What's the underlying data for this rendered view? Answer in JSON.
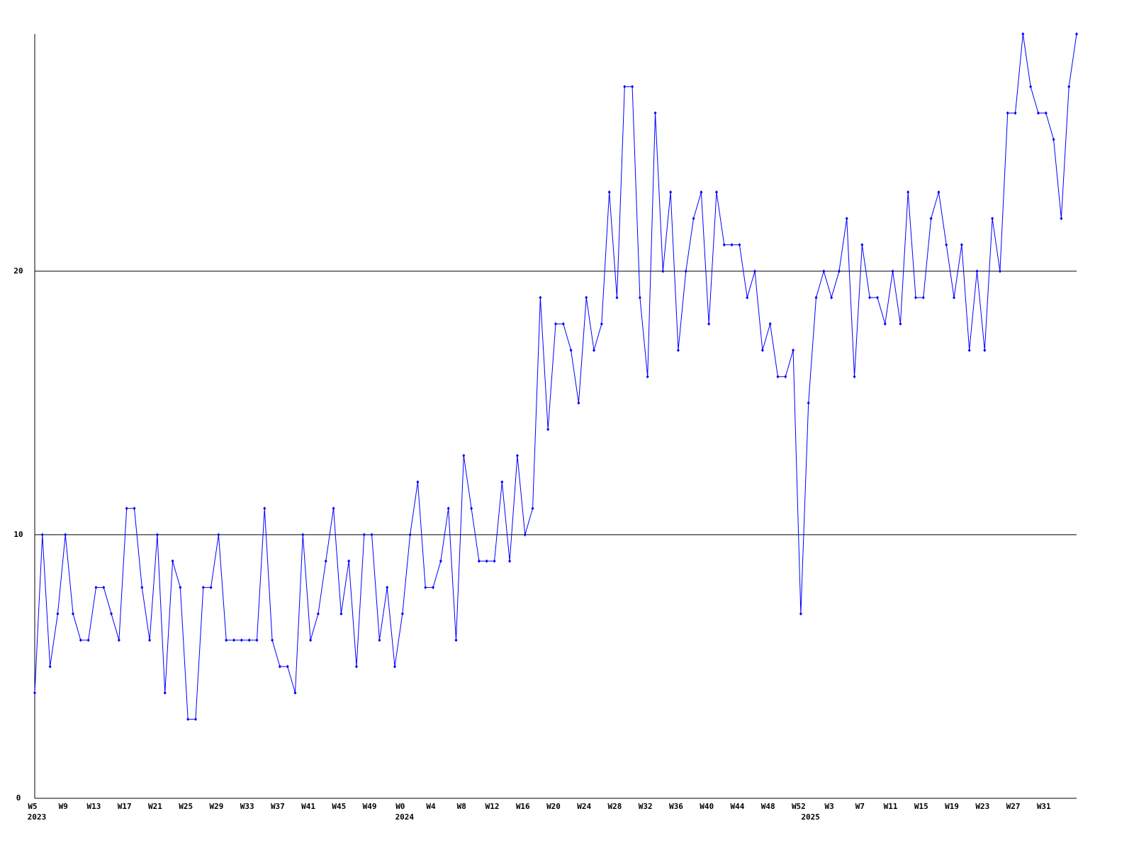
{
  "chart_data": {
    "type": "line",
    "categories": [
      "W5",
      null,
      null,
      null,
      "W9",
      null,
      null,
      null,
      "W13",
      null,
      null,
      null,
      "W17",
      null,
      null,
      null,
      "W21",
      null,
      null,
      null,
      "W25",
      null,
      null,
      null,
      "W29",
      null,
      null,
      null,
      "W33",
      null,
      null,
      null,
      "W37",
      null,
      null,
      null,
      "W41",
      null,
      null,
      null,
      "W45",
      null,
      null,
      null,
      "W49",
      null,
      null,
      null,
      "W0",
      null,
      null,
      null,
      "W4",
      null,
      null,
      null,
      "W8",
      null,
      null,
      null,
      "W12",
      null,
      null,
      null,
      "W16",
      null,
      null,
      null,
      "W20",
      null,
      null,
      null,
      "W24",
      null,
      null,
      null,
      "W28",
      null,
      null,
      null,
      "W32",
      null,
      null,
      null,
      "W36",
      null,
      null,
      null,
      "W40",
      null,
      null,
      null,
      "W44",
      null,
      null,
      null,
      "W48",
      null,
      null,
      null,
      "W52",
      null,
      null,
      null,
      "W3",
      null,
      null,
      null,
      "W7",
      null,
      null,
      null,
      "W11",
      null,
      null,
      null,
      "W15",
      null,
      null,
      null,
      "W19",
      null,
      null,
      null,
      "W23",
      null,
      null,
      null,
      "W27",
      null,
      null,
      null,
      "W31",
      null,
      null,
      null,
      null
    ],
    "years": [
      "2023",
      null,
      null,
      null,
      null,
      null,
      null,
      null,
      null,
      null,
      null,
      null,
      null,
      null,
      null,
      null,
      null,
      null,
      null,
      null,
      null,
      null,
      null,
      null,
      null,
      null,
      null,
      null,
      null,
      null,
      null,
      null,
      null,
      null,
      null,
      null,
      null,
      null,
      null,
      null,
      null,
      null,
      null,
      null,
      null,
      null,
      null,
      null,
      "2024",
      null,
      null,
      null,
      null,
      null,
      null,
      null,
      null,
      null,
      null,
      null,
      null,
      null,
      null,
      null,
      null,
      null,
      null,
      null,
      null,
      null,
      null,
      null,
      null,
      null,
      null,
      null,
      null,
      null,
      null,
      null,
      null,
      null,
      null,
      null,
      null,
      null,
      null,
      null,
      null,
      null,
      null,
      null,
      null,
      null,
      null,
      null,
      null,
      null,
      null,
      null,
      null,
      "2025",
      null,
      null,
      null,
      null,
      null,
      null,
      null,
      null,
      null,
      null,
      null,
      null,
      null,
      null,
      null,
      null,
      null,
      null,
      null,
      null,
      null,
      null,
      null,
      null,
      null,
      null,
      null,
      null,
      null,
      null,
      null,
      null,
      null,
      null,
      null
    ],
    "series": [
      {
        "color": "#0000ff",
        "values": [
          4,
          10,
          5,
          7,
          10,
          7,
          6,
          6,
          8,
          8,
          7,
          6,
          11,
          11,
          8,
          6,
          10,
          4,
          9,
          8,
          3,
          3,
          8,
          8,
          10,
          6,
          6,
          6,
          6,
          6,
          11,
          6,
          5,
          5,
          4,
          10,
          6,
          7,
          9,
          11,
          7,
          9,
          5,
          10,
          10,
          6,
          8,
          5,
          7,
          10,
          12,
          8,
          8,
          9,
          11,
          6,
          13,
          11,
          9,
          9,
          9,
          12,
          9,
          13,
          10,
          11,
          19,
          14,
          18,
          18,
          17,
          15,
          19,
          17,
          18,
          23,
          19,
          27,
          27,
          19,
          16,
          26,
          20,
          23,
          17,
          20,
          22,
          23,
          18,
          23,
          21,
          21,
          21,
          19,
          20,
          17,
          18,
          16,
          16,
          17,
          7,
          15,
          19,
          20,
          19,
          20,
          22,
          16,
          21,
          19,
          19,
          18,
          20,
          18,
          23,
          19,
          19,
          22,
          23,
          21,
          19,
          21,
          17,
          20,
          17,
          22,
          20,
          26,
          26,
          29,
          27,
          26,
          26,
          25,
          22,
          27,
          29
        ]
      }
    ],
    "ylim": [
      0,
      29
    ],
    "yticks": [
      0,
      10,
      20
    ],
    "grid": true
  }
}
